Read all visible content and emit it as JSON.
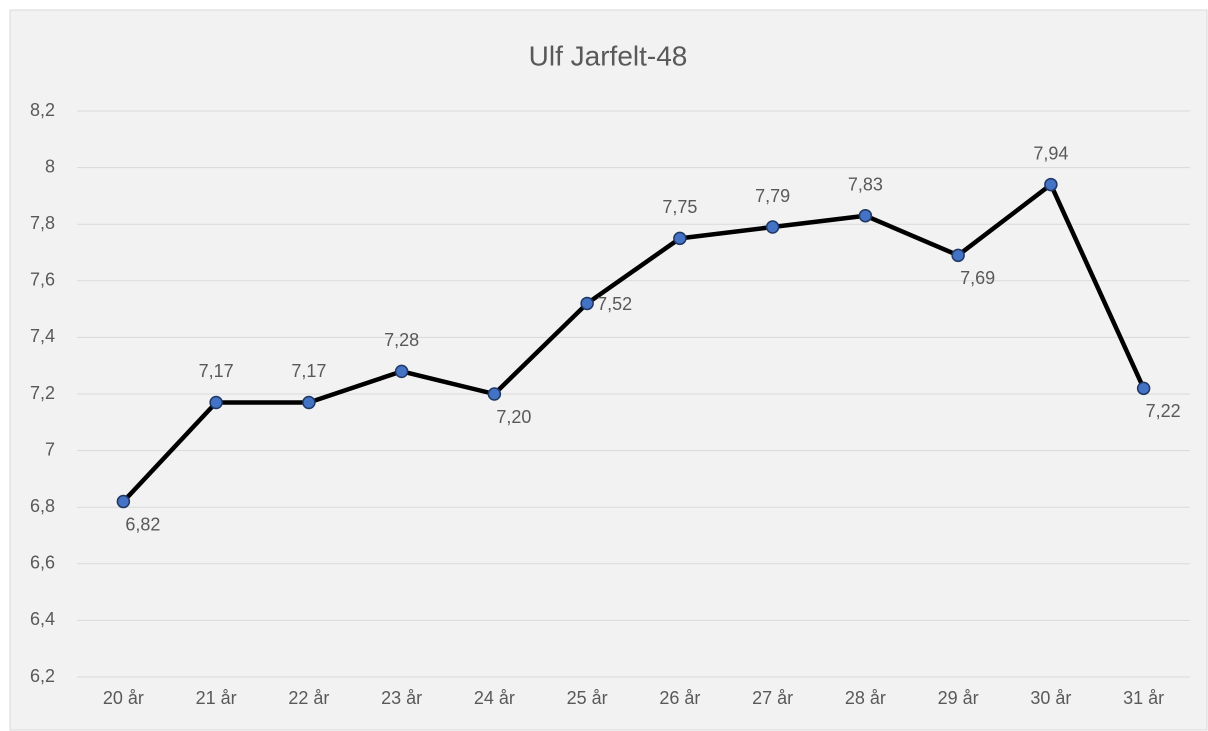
{
  "chart_data": {
    "type": "line",
    "title": "Ulf Jarfelt-48",
    "categories": [
      "20 år",
      "21 år",
      "22 år",
      "23 år",
      "24 år",
      "25 år",
      "26 år",
      "27 år",
      "28 år",
      "29 år",
      "30 år",
      "31 år"
    ],
    "values": [
      6.82,
      7.17,
      7.17,
      7.28,
      7.2,
      7.52,
      7.75,
      7.79,
      7.83,
      7.69,
      7.94,
      7.22
    ],
    "value_labels": [
      "6,82",
      "7,17",
      "7,17",
      "7,28",
      "7,20",
      "7,52",
      "7,75",
      "7,79",
      "7,83",
      "7,69",
      "7,94",
      "7,22"
    ],
    "color": "#000000",
    "marker_color": "#4472c4",
    "ylim": [
      6.2,
      8.2
    ],
    "yticks": [
      {
        "value": 6.2,
        "label": "6,2"
      },
      {
        "value": 6.4,
        "label": "6,4"
      },
      {
        "value": 6.6,
        "label": "6,6"
      },
      {
        "value": 6.8,
        "label": "6,8"
      },
      7,
      {
        "value": 7.2,
        "label": "7,2"
      },
      {
        "value": 7.4,
        "label": "7,4"
      },
      {
        "value": 7.6,
        "label": "7,6"
      },
      {
        "value": 7.8,
        "label": "7,8"
      },
      8,
      {
        "value": 8.2,
        "label": "8,2"
      }
    ],
    "grid": true
  }
}
